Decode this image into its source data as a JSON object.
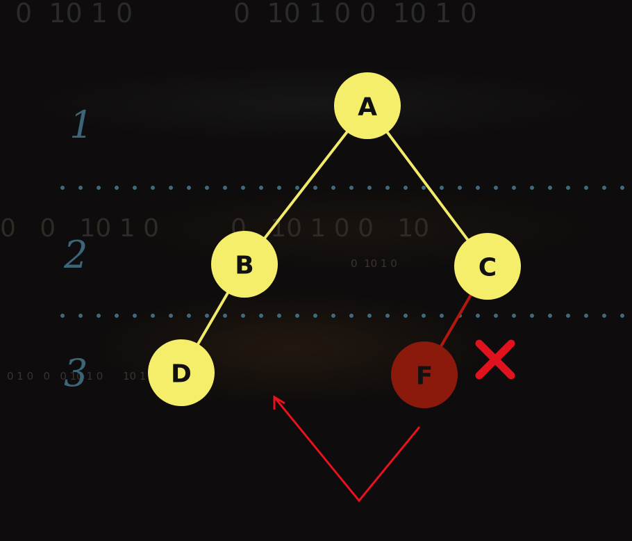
{
  "background": {
    "top_digits": "0  10 1 0            0  10 1 0 0  10 1 0",
    "middle_digits": "0   0   10 1 0         0   10 1 0 0   10",
    "small_digits_row1": "0  10 1 0",
    "small_digits_row2": "0 1 0   0   0 10 1 0      10 1 0"
  },
  "levels": [
    {
      "label": "1"
    },
    {
      "label": "2"
    },
    {
      "label": "3"
    }
  ],
  "colors": {
    "node_fill": "#f5ee6a",
    "node_text": "#111111",
    "edge": "#f2ea6a",
    "removed_node_fill": "#8b1a0c",
    "removed_edge": "#b3180e",
    "cross_mark": "#e0121e",
    "arrow": "#e8121c",
    "dotted_divider": "#3f6a80",
    "level_label": "#3d6578"
  },
  "tree": {
    "nodes": [
      {
        "id": "A",
        "label": "A",
        "state": "normal"
      },
      {
        "id": "B",
        "label": "B",
        "state": "normal"
      },
      {
        "id": "C",
        "label": "C",
        "state": "normal"
      },
      {
        "id": "D",
        "label": "D",
        "state": "normal"
      },
      {
        "id": "F",
        "label": "F",
        "state": "removed"
      }
    ],
    "edges": [
      {
        "from": "A",
        "to": "B",
        "state": "normal"
      },
      {
        "from": "A",
        "to": "C",
        "state": "normal"
      },
      {
        "from": "B",
        "to": "D",
        "state": "normal"
      },
      {
        "from": "C",
        "to": "F",
        "state": "removed"
      }
    ]
  },
  "annotations": {
    "cross_icon": "x-mark-icon",
    "arrow_icon": "v-arrow-icon"
  }
}
